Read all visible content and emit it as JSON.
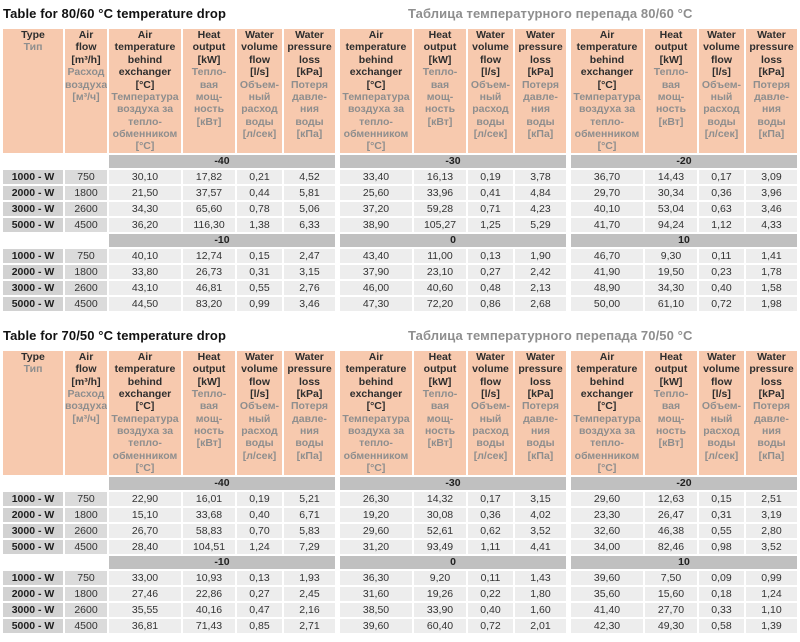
{
  "colors": {
    "header_bg": "#f7c9ae",
    "band_bg": "#c0c0c0",
    "type_cell_bg": "#d2d2d2",
    "flow_cell_bg": "#dbdbdb",
    "value_cell_bg": "#ededed",
    "en_text": "#2e2e2e",
    "ru_text": "#8e8e8e"
  },
  "header": {
    "type": {
      "key": "type",
      "en": "Type",
      "ru": "Тип"
    },
    "air_flow": {
      "key": "air-flow",
      "en": "Air\nflow\n[m³/h]",
      "ru": "Расход\nвоздуха\n[м³/ч]"
    },
    "group_columns": [
      {
        "key": "air-temperature-behind-exchanger",
        "en": "Air\ntemperature\nbehind\nexchanger\n[°C]",
        "ru": "Температура\nвоздуха за\nтепло-\nобменником\n[°C]"
      },
      {
        "key": "heat-output",
        "en": "Heat\noutput\n[kW]",
        "ru": "Тепло-\nвая\nмощ-\nность\n[кВт]"
      },
      {
        "key": "water-volume-flow",
        "en": "Water\nvolume\nflow\n[l/s]",
        "ru": "Объем-\nный\nрасход\nводы\n[л/сек]"
      },
      {
        "key": "water-pressure-loss",
        "en": "Water\npressure\nloss\n[kPa]",
        "ru": "Потеря\nдавле-\nния\nводы\n[кПа]"
      }
    ]
  },
  "tables": [
    {
      "title_en": "Table for 80/60 °C temperature drop",
      "title_ru": "Таблица температурного перепада 80/60 °C",
      "blocks": [
        {
          "temps": [
            "-40",
            "-30",
            "-20"
          ],
          "rows": [
            {
              "type": "1000 - W",
              "air_flow": "750",
              "values": [
                "30,10",
                "17,82",
                "0,21",
                "4,52",
                "33,40",
                "16,13",
                "0,19",
                "3,78",
                "36,70",
                "14,43",
                "0,17",
                "3,09"
              ]
            },
            {
              "type": "2000 - W",
              "air_flow": "1800",
              "values": [
                "21,50",
                "37,57",
                "0,44",
                "5,81",
                "25,60",
                "33,96",
                "0,41",
                "4,84",
                "29,70",
                "30,34",
                "0,36",
                "3,96"
              ]
            },
            {
              "type": "3000 - W",
              "air_flow": "2600",
              "values": [
                "34,30",
                "65,60",
                "0,78",
                "5,06",
                "37,20",
                "59,28",
                "0,71",
                "4,23",
                "40,10",
                "53,04",
                "0,63",
                "3,46"
              ]
            },
            {
              "type": "5000 - W",
              "air_flow": "4500",
              "values": [
                "36,20",
                "116,30",
                "1,38",
                "6,33",
                "38,90",
                "105,27",
                "1,25",
                "5,29",
                "41,70",
                "94,24",
                "1,12",
                "4,33"
              ]
            }
          ]
        },
        {
          "temps": [
            "-10",
            "0",
            "10"
          ],
          "rows": [
            {
              "type": "1000 - W",
              "air_flow": "750",
              "values": [
                "40,10",
                "12,74",
                "0,15",
                "2,47",
                "43,40",
                "11,00",
                "0,13",
                "1,90",
                "46,70",
                "9,30",
                "0,11",
                "1,41"
              ]
            },
            {
              "type": "2000 - W",
              "air_flow": "1800",
              "values": [
                "33,80",
                "26,73",
                "0,31",
                "3,15",
                "37,90",
                "23,10",
                "0,27",
                "2,42",
                "41,90",
                "19,50",
                "0,23",
                "1,78"
              ]
            },
            {
              "type": "3000 - W",
              "air_flow": "2600",
              "values": [
                "43,10",
                "46,81",
                "0,55",
                "2,76",
                "46,00",
                "40,60",
                "0,48",
                "2,13",
                "48,90",
                "34,30",
                "0,40",
                "1,58"
              ]
            },
            {
              "type": "5000 - W",
              "air_flow": "4500",
              "values": [
                "44,50",
                "83,20",
                "0,99",
                "3,46",
                "47,30",
                "72,20",
                "0,86",
                "2,68",
                "50,00",
                "61,10",
                "0,72",
                "1,98"
              ]
            }
          ]
        }
      ]
    },
    {
      "title_en": "Table for 70/50 °C temperature drop",
      "title_ru": "Таблица температурного перепада 70/50 °C",
      "blocks": [
        {
          "temps": [
            "-40",
            "-30",
            "-20"
          ],
          "rows": [
            {
              "type": "1000 - W",
              "air_flow": "750",
              "values": [
                "22,90",
                "16,01",
                "0,19",
                "5,21",
                "26,30",
                "14,32",
                "0,17",
                "3,15",
                "29,60",
                "12,63",
                "0,15",
                "2,51"
              ]
            },
            {
              "type": "2000 - W",
              "air_flow": "1800",
              "values": [
                "15,10",
                "33,68",
                "0,40",
                "6,71",
                "19,20",
                "30,08",
                "0,36",
                "4,02",
                "23,30",
                "26,47",
                "0,31",
                "3,19"
              ]
            },
            {
              "type": "3000 - W",
              "air_flow": "2600",
              "values": [
                "26,70",
                "58,83",
                "0,70",
                "5,83",
                "29,60",
                "52,61",
                "0,62",
                "3,52",
                "32,60",
                "46,38",
                "0,55",
                "2,80"
              ]
            },
            {
              "type": "5000 - W",
              "air_flow": "4500",
              "values": [
                "28,40",
                "104,51",
                "1,24",
                "7,29",
                "31,20",
                "93,49",
                "1,11",
                "4,41",
                "34,00",
                "82,46",
                "0,98",
                "3,52"
              ]
            }
          ]
        },
        {
          "temps": [
            "-10",
            "0",
            "10"
          ],
          "rows": [
            {
              "type": "1000 - W",
              "air_flow": "750",
              "values": [
                "33,00",
                "10,93",
                "0,13",
                "1,93",
                "36,30",
                "9,20",
                "0,11",
                "1,43",
                "39,60",
                "7,50",
                "0,09",
                "0,99"
              ]
            },
            {
              "type": "2000 - W",
              "air_flow": "1800",
              "values": [
                "27,46",
                "22,86",
                "0,27",
                "2,45",
                "31,60",
                "19,26",
                "0,22",
                "1,80",
                "35,60",
                "15,60",
                "0,18",
                "1,24"
              ]
            },
            {
              "type": "3000 - W",
              "air_flow": "2600",
              "values": [
                "35,55",
                "40,16",
                "0,47",
                "2,16",
                "38,50",
                "33,90",
                "0,40",
                "1,60",
                "41,40",
                "27,70",
                "0,33",
                "1,10"
              ]
            },
            {
              "type": "5000 - W",
              "air_flow": "4500",
              "values": [
                "36,81",
                "71,43",
                "0,85",
                "2,71",
                "39,60",
                "60,40",
                "0,72",
                "2,01",
                "42,30",
                "49,30",
                "0,58",
                "1,39"
              ]
            }
          ]
        }
      ]
    }
  ]
}
